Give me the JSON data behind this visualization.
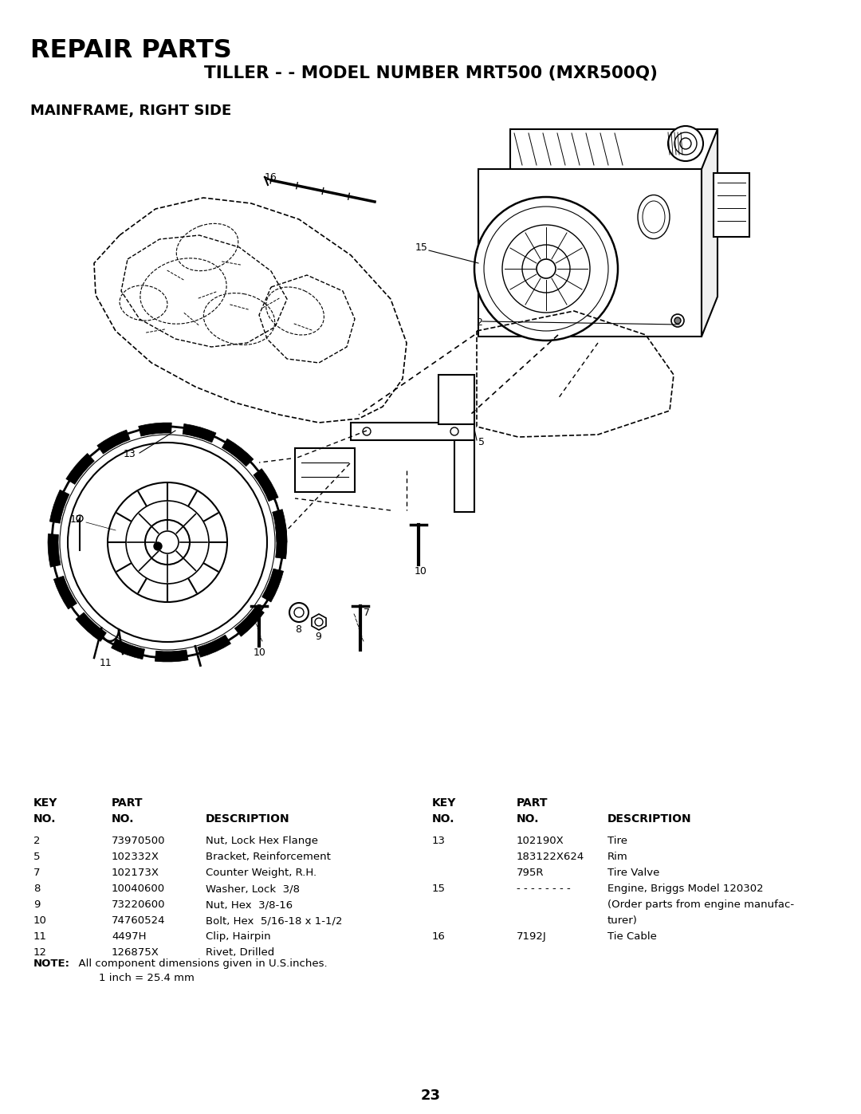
{
  "title_line1": "REPAIR PARTS",
  "title_line2": "TILLER - - MODEL NUMBER MRT500 (MXR500Q)",
  "subtitle": "MAINFRAME, RIGHT SIDE",
  "page_number": "23",
  "background_color": "#ffffff",
  "text_color": "#000000",
  "left_parts": [
    [
      "2",
      "73970500",
      "Nut, Lock Hex Flange"
    ],
    [
      "5",
      "102332X",
      "Bracket, Reinforcement"
    ],
    [
      "7",
      "102173X",
      "Counter Weight, R.H."
    ],
    [
      "8",
      "10040600",
      "Washer, Lock  3/8"
    ],
    [
      "9",
      "73220600",
      "Nut, Hex  3/8-16"
    ],
    [
      "10",
      "74760524",
      "Bolt, Hex  5/16-18 x 1-1/2"
    ],
    [
      "11",
      "4497H",
      "Clip, Hairpin"
    ],
    [
      "12",
      "126875X",
      "Rivet, Drilled"
    ]
  ],
  "right_parts": [
    [
      "13",
      "102190X",
      "Tire"
    ],
    [
      "",
      "183122X624",
      "Rim"
    ],
    [
      "",
      "795R",
      "Tire Valve"
    ],
    [
      "15",
      "- - - - - - - -",
      "Engine, Briggs Model 120302"
    ],
    [
      "",
      "",
      "(Order parts from engine manufac-"
    ],
    [
      "",
      "",
      "turer)"
    ],
    [
      "16",
      "7192J",
      "Tie Cable"
    ]
  ],
  "note_bold": "NOTE:",
  "note_text1": "  All component dimensions given in U.S.inches.",
  "note_text2": "        1 inch = 25.4 mm",
  "fig_width": 10.8,
  "fig_height": 13.97,
  "dpi": 100
}
